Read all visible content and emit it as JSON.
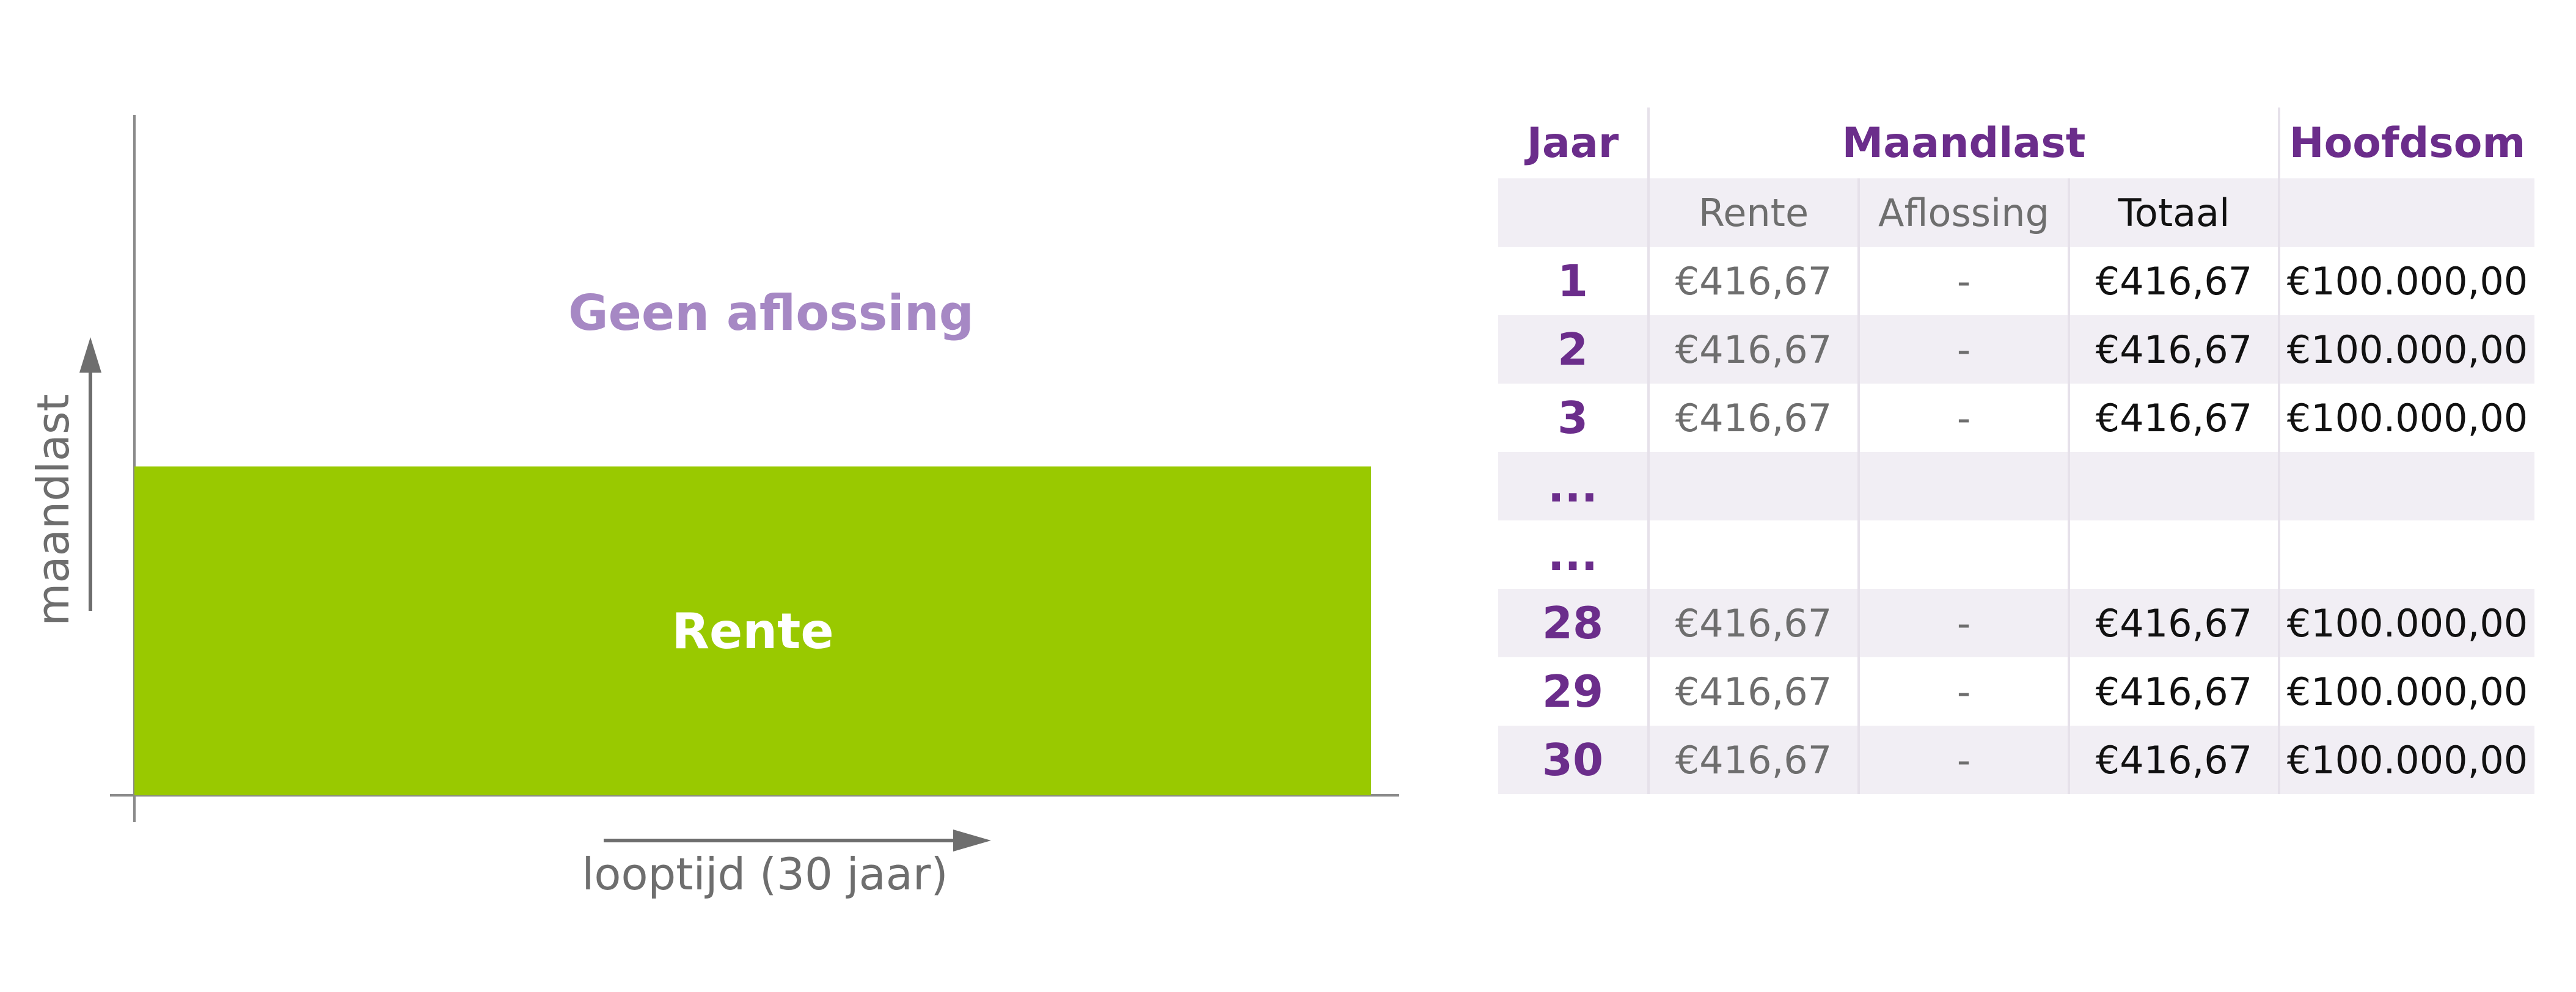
{
  "chart_data": {
    "type": "area",
    "title": "",
    "xlabel": "looptijd (30 jaar)",
    "ylabel": "maandlast",
    "segments": [
      {
        "name": "Rente",
        "value": 416.67,
        "color": "#99c900"
      }
    ],
    "annotation": "Geen aflossing",
    "annotation_color": "#a688c4",
    "x_range": [
      0,
      30
    ]
  },
  "table": {
    "headers": {
      "jaar": "Jaar",
      "maandlast": "Maandlast",
      "hoofdsom": "Hoofdsom"
    },
    "subheaders": {
      "rente": "Rente",
      "aflossing": "Aflossing",
      "totaal": "Totaal"
    },
    "rows": [
      {
        "jaar": "1",
        "rente": "€416,67",
        "aflossing": "-",
        "totaal": "€416,67",
        "hoofdsom": "€100.000,00"
      },
      {
        "jaar": "2",
        "rente": "€416,67",
        "aflossing": "-",
        "totaal": "€416,67",
        "hoofdsom": "€100.000,00"
      },
      {
        "jaar": "3",
        "rente": "€416,67",
        "aflossing": "-",
        "totaal": "€416,67",
        "hoofdsom": "€100.000,00"
      },
      {
        "jaar": "...",
        "rente": "",
        "aflossing": "",
        "totaal": "",
        "hoofdsom": ""
      },
      {
        "jaar": "...",
        "rente": "",
        "aflossing": "",
        "totaal": "",
        "hoofdsom": ""
      },
      {
        "jaar": "28",
        "rente": "€416,67",
        "aflossing": "-",
        "totaal": "€416,67",
        "hoofdsom": "€100.000,00"
      },
      {
        "jaar": "29",
        "rente": "€416,67",
        "aflossing": "-",
        "totaal": "€416,67",
        "hoofdsom": "€100.000,00"
      },
      {
        "jaar": "30",
        "rente": "€416,67",
        "aflossing": "-",
        "totaal": "€416,67",
        "hoofdsom": "€100.000,00"
      }
    ]
  }
}
